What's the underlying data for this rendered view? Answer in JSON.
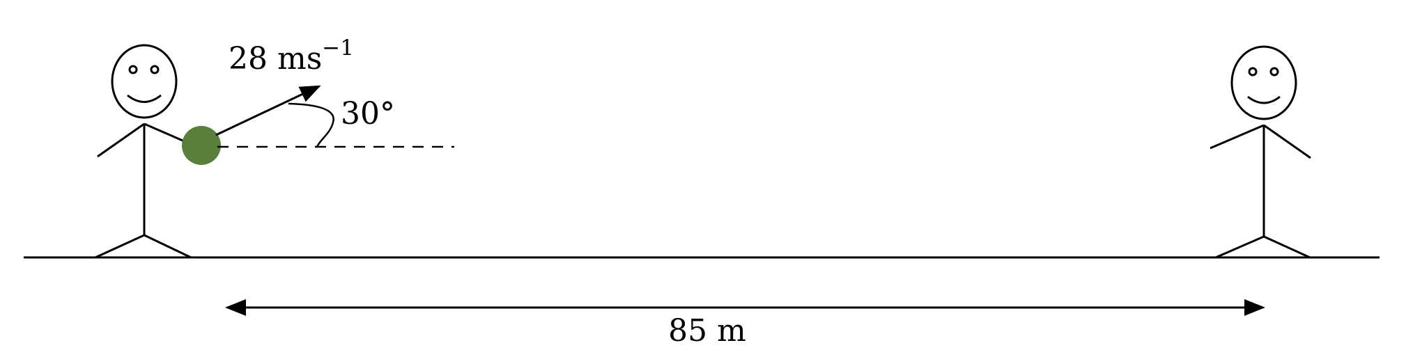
{
  "speed_label": {
    "base": "28 ms",
    "exponent": "−1"
  },
  "angle_label": "30°",
  "distance_label": "85 m",
  "colors": {
    "ball": "#5a7f3c",
    "line": "#000000",
    "background": "#ffffff"
  }
}
